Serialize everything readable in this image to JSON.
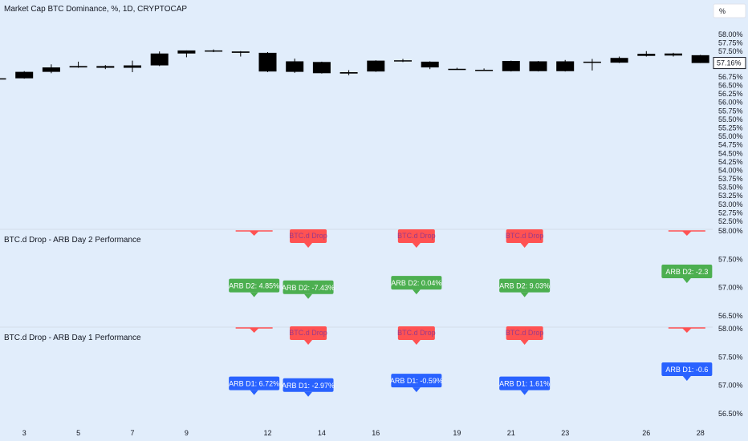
{
  "header": {
    "symbol_title": "Market Cap BTC Dominance, %, 1D, CRYPTOCAP",
    "unit_box": "%"
  },
  "panes": {
    "pane2_title": "BTC.d Drop - ARB Day 2 Performance",
    "pane3_title": "BTC.d Drop - ARB Day 1 Performance"
  },
  "colors": {
    "background": "#e1edfb",
    "candle": "#000000",
    "green_label": "#4caf50",
    "blue_label": "#2962ff",
    "red_label": "#ff5252"
  },
  "chart_data": {
    "type": "candlestick",
    "x_tick_labels": [
      "3",
      "5",
      "7",
      "9",
      "12",
      "14",
      "16",
      "19",
      "21",
      "23",
      "26",
      "28"
    ],
    "y_tick_labels_main": [
      "58.00%",
      "57.75%",
      "57.50%",
      "57.25%",
      "56.75%",
      "56.50%",
      "56.25%",
      "56.00%",
      "55.75%",
      "55.50%",
      "55.25%",
      "55.00%",
      "54.75%",
      "54.50%",
      "54.25%",
      "54.00%",
      "53.75%",
      "53.50%",
      "53.25%",
      "53.00%",
      "52.75%",
      "52.50%"
    ],
    "last_price_label": "57.16%",
    "y_tick_labels_pane2": [
      "58.00%",
      "57.50%",
      "57.00%",
      "56.50%"
    ],
    "y_tick_labels_pane3": [
      "58.00%",
      "57.50%",
      "57.00%",
      "56.50%"
    ],
    "candles": [
      {
        "o": 56.7,
        "h": 56.72,
        "l": 56.68,
        "c": 56.71
      },
      {
        "o": 56.71,
        "h": 56.92,
        "l": 56.7,
        "c": 56.9
      },
      {
        "o": 56.9,
        "h": 57.12,
        "l": 56.86,
        "c": 57.03
      },
      {
        "o": 57.03,
        "h": 57.2,
        "l": 57.02,
        "c": 57.07
      },
      {
        "o": 57.07,
        "h": 57.1,
        "l": 56.98,
        "c": 57.02
      },
      {
        "o": 57.02,
        "h": 57.23,
        "l": 56.89,
        "c": 57.09
      },
      {
        "o": 57.09,
        "h": 57.5,
        "l": 57.07,
        "c": 57.44
      },
      {
        "o": 57.44,
        "h": 57.53,
        "l": 57.33,
        "c": 57.53
      },
      {
        "o": 57.53,
        "h": 57.56,
        "l": 57.48,
        "c": 57.5
      },
      {
        "o": 57.5,
        "h": 57.51,
        "l": 57.35,
        "c": 57.46
      },
      {
        "o": 57.46,
        "h": 57.48,
        "l": 56.89,
        "c": 56.91
      },
      {
        "o": 57.21,
        "h": 57.29,
        "l": 56.87,
        "c": 56.9
      },
      {
        "o": 57.19,
        "h": 57.2,
        "l": 56.85,
        "c": 56.86
      },
      {
        "o": 56.89,
        "h": 56.95,
        "l": 56.8,
        "c": 56.85
      },
      {
        "o": 57.23,
        "h": 57.24,
        "l": 56.9,
        "c": 56.91
      },
      {
        "o": 57.24,
        "h": 57.28,
        "l": 57.19,
        "c": 57.21
      },
      {
        "o": 57.2,
        "h": 57.21,
        "l": 56.98,
        "c": 57.03
      },
      {
        "o": 56.99,
        "h": 57.02,
        "l": 56.97,
        "c": 56.97
      },
      {
        "o": 56.94,
        "h": 57.0,
        "l": 56.93,
        "c": 56.96
      },
      {
        "o": 57.22,
        "h": 57.23,
        "l": 56.91,
        "c": 56.92
      },
      {
        "o": 57.21,
        "h": 57.22,
        "l": 56.91,
        "c": 56.92
      },
      {
        "o": 57.21,
        "h": 57.25,
        "l": 56.91,
        "c": 56.92
      },
      {
        "o": 57.2,
        "h": 57.28,
        "l": 56.94,
        "c": 57.17
      },
      {
        "o": 57.17,
        "h": 57.35,
        "l": 57.16,
        "c": 57.31
      },
      {
        "o": 57.43,
        "h": 57.51,
        "l": 57.35,
        "c": 57.37
      },
      {
        "o": 57.44,
        "h": 57.46,
        "l": 57.35,
        "c": 57.38
      },
      {
        "o": 57.39,
        "h": 57.4,
        "l": 57.16,
        "c": 57.16
      }
    ],
    "pane2_labels": [
      {
        "text": "ARB D2: 4.85%",
        "color": "green",
        "bar": 9.5,
        "level": 57.0
      },
      {
        "text": "ARB D2: -7.43%",
        "color": "green",
        "bar": 11.5,
        "level": 56.97
      },
      {
        "text": "ARB D2: 0.04%",
        "color": "green",
        "bar": 15.5,
        "level": 57.05
      },
      {
        "text": "ARB D2: 9.03%",
        "color": "green",
        "bar": 19.5,
        "level": 57.0
      },
      {
        "text": "ARB D2: -2.3",
        "color": "green",
        "bar": 25.5,
        "level": 57.25
      }
    ],
    "pane3_labels": [
      {
        "text": "ARB D1: 6.72%",
        "color": "blue",
        "bar": 9.5,
        "level": 57.0
      },
      {
        "text": "ARB D1: -2.97%",
        "color": "blue",
        "bar": 11.5,
        "level": 56.97
      },
      {
        "text": "ARB D1: -0.59%",
        "color": "blue",
        "bar": 15.5,
        "level": 57.05
      },
      {
        "text": "ARB D1: 1.61%",
        "color": "blue",
        "bar": 19.5,
        "level": 57.0
      },
      {
        "text": "ARB D1: -0.6",
        "color": "blue",
        "bar": 25.5,
        "level": 57.25
      }
    ],
    "drop_markers": [
      {
        "text": "",
        "bar": 9.5
      },
      {
        "text": "BTC.d Drop",
        "bar": 11.5
      },
      {
        "text": "BTC.d Drop",
        "bar": 15.5
      },
      {
        "text": "BTC.d Drop",
        "bar": 19.5
      },
      {
        "text": "",
        "bar": 25.5
      }
    ]
  }
}
